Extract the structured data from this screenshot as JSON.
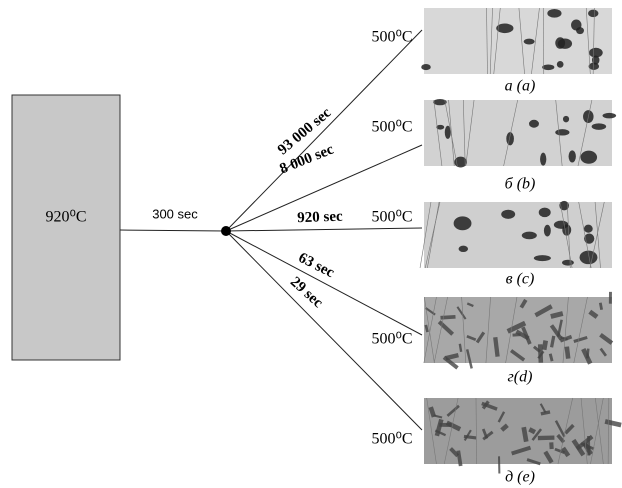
{
  "austenitizing": {
    "label": "920⁰C",
    "hold": "300 sec"
  },
  "branches": [
    {
      "time": "93 000 sec",
      "temperature": "500⁰C",
      "caption": "а (a)"
    },
    {
      "time": "8 000 sec",
      "temperature": "500⁰C",
      "caption": "б (b)"
    },
    {
      "time": "920 sec",
      "temperature": "500⁰C",
      "caption": "в (c)"
    },
    {
      "time": "63 sec",
      "temperature": "500⁰C",
      "caption": "г(d)"
    },
    {
      "time": "29 sec",
      "temperature": "500⁰C",
      "caption": "д (e)"
    }
  ]
}
